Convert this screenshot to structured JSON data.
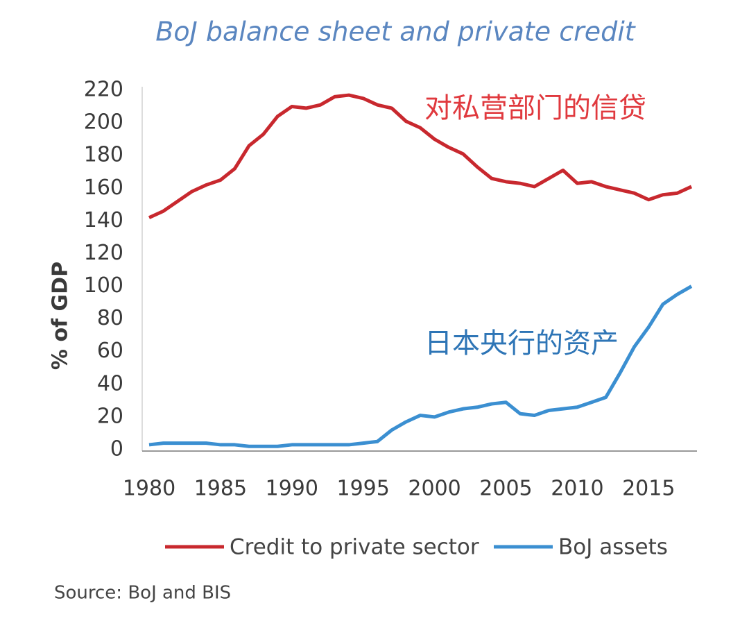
{
  "chart_data": {
    "type": "line",
    "title": "BoJ balance sheet and private credit",
    "y_label": "% of GDP",
    "source": "Source: BoJ and BIS",
    "x": [
      1980,
      1981,
      1982,
      1983,
      1984,
      1985,
      1986,
      1987,
      1988,
      1989,
      1990,
      1991,
      1992,
      1993,
      1994,
      1995,
      1996,
      1997,
      1998,
      1999,
      2000,
      2001,
      2002,
      2003,
      2004,
      2005,
      2006,
      2007,
      2008,
      2009,
      2010,
      2011,
      2012,
      2013,
      2014,
      2015,
      2016,
      2017,
      2018
    ],
    "series": [
      {
        "name": "Credit to private sector",
        "color": "#c8282e",
        "values": [
          142,
          146,
          152,
          158,
          162,
          165,
          172,
          186,
          193,
          204,
          210,
          209,
          211,
          216,
          217,
          215,
          211,
          209,
          201,
          197,
          190,
          185,
          181,
          173,
          166,
          164,
          163,
          161,
          166,
          171,
          163,
          164,
          161,
          159,
          157,
          153,
          156,
          157,
          161
        ]
      },
      {
        "name": "BoJ assets",
        "color": "#3b8fd1",
        "values": [
          3,
          4,
          4,
          4,
          4,
          3,
          3,
          2,
          2,
          2,
          3,
          3,
          3,
          3,
          3,
          4,
          5,
          12,
          17,
          21,
          20,
          23,
          25,
          26,
          28,
          29,
          22,
          21,
          24,
          25,
          26,
          29,
          32,
          47,
          63,
          75,
          89,
          95,
          100
        ]
      }
    ],
    "annotations": [
      {
        "text": "对私营部门的信贷",
        "color": "#e0393e"
      },
      {
        "text": "日本央行的资产",
        "color": "#2e75b6"
      }
    ],
    "xlim": [
      1980,
      2018
    ],
    "xticks": [
      1980,
      1985,
      1990,
      1995,
      2000,
      2005,
      2010,
      2015
    ],
    "ylim": [
      0,
      220
    ],
    "yticks": [
      0,
      20,
      40,
      60,
      80,
      100,
      120,
      140,
      160,
      180,
      200,
      220
    ]
  }
}
